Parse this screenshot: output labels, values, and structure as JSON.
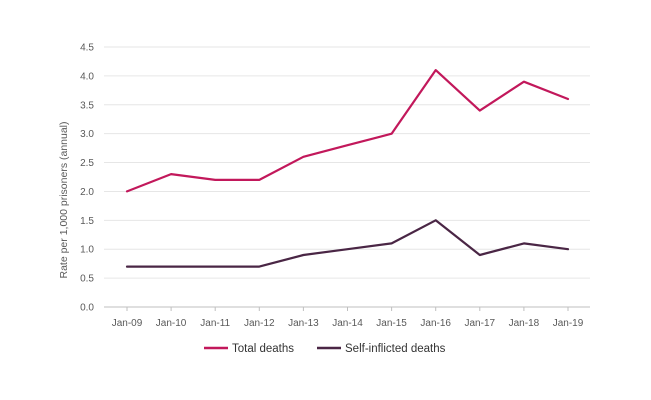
{
  "chart_data": {
    "type": "line",
    "title": "",
    "xlabel": "",
    "ylabel": "Rate per 1,000 prisoners (annual)",
    "x": [
      "Jan-09",
      "Jan-10",
      "Jan-11",
      "Jan-12",
      "Jan-13",
      "Jan-14",
      "Jan-15",
      "Jan-16",
      "Jan-17",
      "Jan-18",
      "Jan-19"
    ],
    "ylim": [
      0,
      4.5
    ],
    "yticks": [
      "0.0",
      "0.5",
      "1.0",
      "1.5",
      "2.0",
      "2.5",
      "3.0",
      "3.5",
      "4.0",
      "4.5"
    ],
    "grid": true,
    "legend_position": "bottom",
    "series": [
      {
        "name": "Total deaths",
        "color": "#c2185b",
        "values": [
          2.0,
          2.3,
          2.2,
          2.2,
          2.6,
          2.8,
          3.0,
          4.1,
          3.4,
          3.9,
          3.6
        ]
      },
      {
        "name": "Self-inflicted deaths",
        "color": "#4a2645",
        "values": [
          0.7,
          0.7,
          0.7,
          0.7,
          0.9,
          1.0,
          1.1,
          1.5,
          0.9,
          1.1,
          1.0
        ]
      }
    ]
  }
}
